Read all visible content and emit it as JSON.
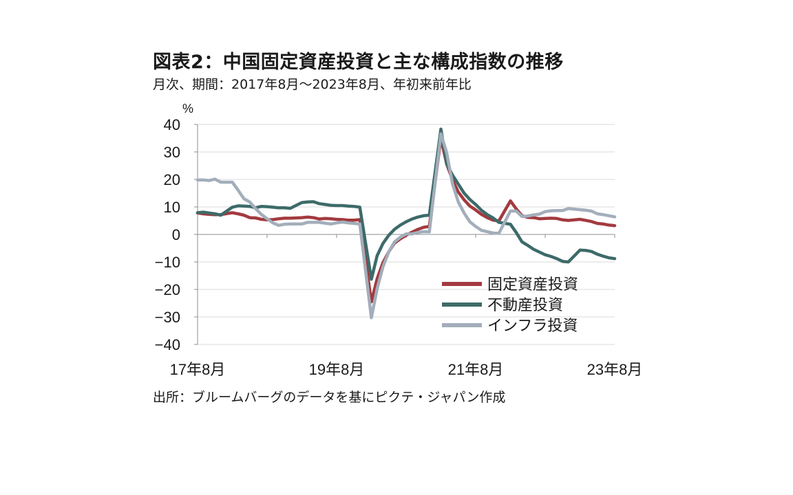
{
  "title": "図表2：中国固定資産投資と主な構成指数の推移",
  "subtitle": "月次、期間：2017年8月〜2023年8月、年初来前年比",
  "source": "出所：ブルームバーグのデータを基にピクテ・ジャパン作成",
  "chart_data": {
    "type": "line",
    "unit_label": "%",
    "ylim": [
      -40,
      40
    ],
    "yticks": [
      40,
      30,
      20,
      10,
      0,
      -10,
      -20,
      -30,
      -40
    ],
    "ytick_labels": [
      "40",
      "30",
      "20",
      "10",
      "0",
      "−10",
      "−20",
      "−30",
      "−40"
    ],
    "xlim": [
      "2017-08",
      "2023-08"
    ],
    "xticks": [
      {
        "date": "2017-08",
        "label": "17年8月"
      },
      {
        "date": "2019-08",
        "label": "19年8月"
      },
      {
        "date": "2021-08",
        "label": "21年8月"
      },
      {
        "date": "2023-08",
        "label": "23年8月"
      }
    ],
    "grid": true,
    "legend_position": "bottom-right",
    "x": [
      "2017-08",
      "2017-09",
      "2017-10",
      "2017-11",
      "2017-12",
      "2018-02",
      "2018-03",
      "2018-04",
      "2018-05",
      "2018-06",
      "2018-07",
      "2018-08",
      "2018-09",
      "2018-10",
      "2018-11",
      "2018-12",
      "2019-02",
      "2019-03",
      "2019-04",
      "2019-05",
      "2019-06",
      "2019-07",
      "2019-08",
      "2019-09",
      "2019-10",
      "2019-11",
      "2019-12",
      "2020-02",
      "2020-03",
      "2020-04",
      "2020-05",
      "2020-06",
      "2020-07",
      "2020-08",
      "2020-09",
      "2020-10",
      "2020-11",
      "2020-12",
      "2021-02",
      "2021-03",
      "2021-04",
      "2021-05",
      "2021-06",
      "2021-07",
      "2021-08",
      "2021-09",
      "2021-10",
      "2021-11",
      "2021-12",
      "2022-02",
      "2022-03",
      "2022-04",
      "2022-05",
      "2022-06",
      "2022-07",
      "2022-08",
      "2022-09",
      "2022-10",
      "2022-11",
      "2022-12",
      "2023-02",
      "2023-03",
      "2023-04",
      "2023-05",
      "2023-06",
      "2023-07",
      "2023-08"
    ],
    "series": [
      {
        "name": "固定資産投資",
        "color": "#a33a3f",
        "values": [
          7.8,
          7.5,
          7.3,
          7.2,
          7.2,
          7.9,
          7.5,
          7.0,
          6.1,
          6.0,
          5.5,
          5.3,
          5.4,
          5.7,
          5.9,
          5.9,
          6.1,
          6.3,
          6.1,
          5.6,
          5.8,
          5.7,
          5.5,
          5.4,
          5.2,
          5.2,
          5.4,
          -24.5,
          -16.1,
          -10.3,
          -6.3,
          -3.1,
          -1.6,
          -0.3,
          0.8,
          1.8,
          2.6,
          2.9,
          35.0,
          25.6,
          19.9,
          15.4,
          12.6,
          10.3,
          8.9,
          7.3,
          6.1,
          5.2,
          4.9,
          12.2,
          9.3,
          6.8,
          6.2,
          6.1,
          5.7,
          5.8,
          5.9,
          5.8,
          5.3,
          5.1,
          5.5,
          5.1,
          4.7,
          4.0,
          3.8,
          3.4,
          3.2
        ]
      },
      {
        "name": "不動産投資",
        "color": "#3d6b69",
        "values": [
          7.9,
          8.1,
          7.8,
          7.5,
          7.0,
          9.9,
          10.4,
          10.3,
          10.2,
          9.7,
          10.2,
          10.1,
          9.9,
          9.7,
          9.7,
          9.5,
          11.6,
          11.8,
          11.9,
          11.2,
          10.9,
          10.6,
          10.5,
          10.5,
          10.3,
          10.2,
          9.9,
          -16.3,
          -7.7,
          -3.3,
          -0.3,
          1.9,
          3.4,
          4.6,
          5.6,
          6.3,
          6.8,
          7.0,
          38.3,
          25.6,
          21.6,
          18.3,
          15.0,
          12.7,
          10.9,
          8.8,
          7.2,
          6.0,
          4.4,
          3.7,
          0.7,
          -2.7,
          -4.0,
          -5.4,
          -6.4,
          -7.4,
          -8.0,
          -8.8,
          -9.8,
          -10.0,
          -5.7,
          -5.8,
          -6.2,
          -7.2,
          -7.9,
          -8.5,
          -8.8
        ]
      },
      {
        "name": "インフラ投資",
        "color": "#a3aebb",
        "values": [
          19.8,
          19.8,
          19.6,
          20.1,
          19.0,
          19.0,
          16.1,
          13.0,
          11.8,
          9.4,
          7.3,
          5.7,
          4.2,
          3.3,
          3.7,
          3.8,
          3.8,
          4.4,
          4.4,
          4.4,
          4.1,
          3.8,
          4.2,
          4.5,
          4.2,
          4.0,
          3.8,
          -30.3,
          -19.7,
          -11.8,
          -6.3,
          -2.7,
          -1.0,
          0.2,
          0.2,
          0.7,
          1.0,
          0.9,
          36.6,
          29.7,
          18.4,
          11.8,
          7.8,
          4.6,
          2.9,
          1.5,
          1.0,
          0.5,
          0.4,
          8.5,
          8.5,
          6.5,
          6.7,
          7.1,
          7.4,
          8.3,
          8.6,
          8.7,
          8.7,
          9.4,
          9.0,
          8.8,
          8.5,
          7.5,
          7.2,
          6.8,
          6.4
        ]
      }
    ]
  }
}
